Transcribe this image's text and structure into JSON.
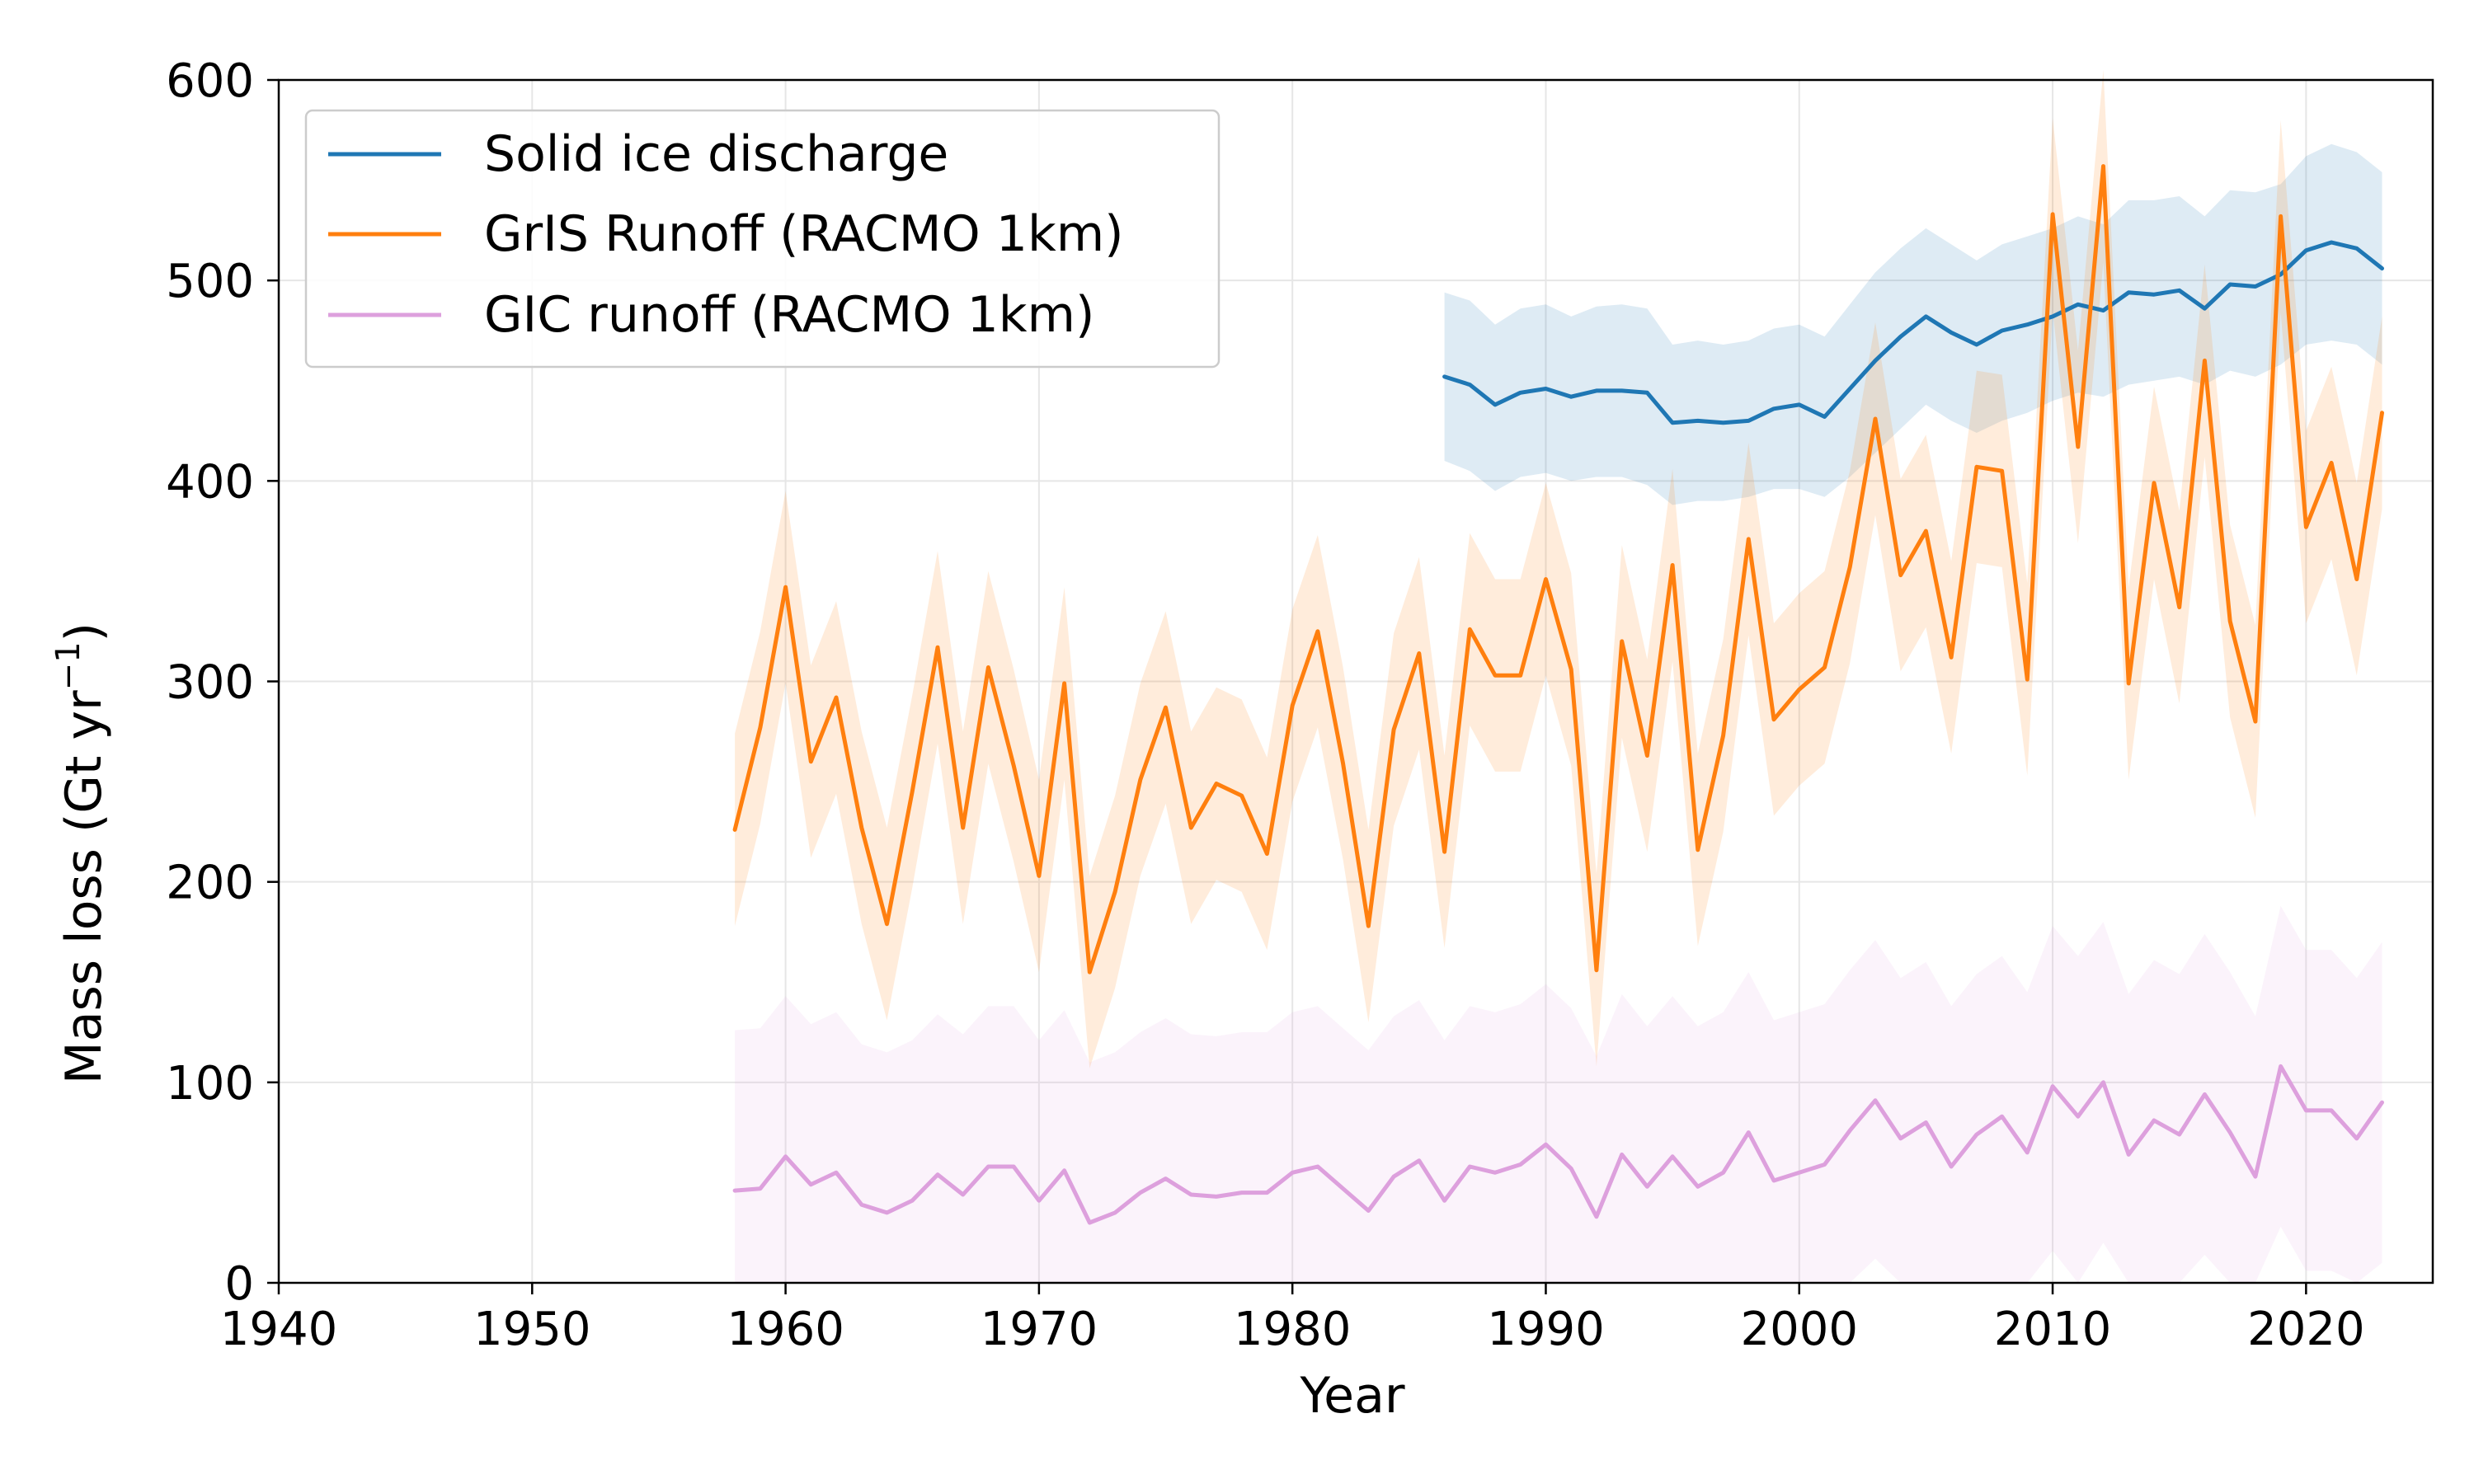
{
  "chart_data": {
    "type": "line",
    "xlabel": "Year",
    "ylabel": "Mass loss (Gt yr",
    "ylabel_sup": "−1",
    "ylabel_close": ")",
    "xlim": [
      1940,
      2025
    ],
    "ylim": [
      0,
      600
    ],
    "xticks": [
      "1940",
      "1950",
      "1960",
      "1970",
      "1980",
      "1990",
      "2000",
      "2010",
      "2020"
    ],
    "yticks": [
      "0",
      "100",
      "200",
      "300",
      "400",
      "500",
      "600"
    ],
    "grid": true,
    "legend_position": "top-left",
    "series": [
      {
        "name": "Solid ice discharge",
        "color": "#1f77b4",
        "band_color": "#1f77b4",
        "x": [
          1986,
          1987,
          1988,
          1989,
          1990,
          1991,
          1992,
          1993,
          1994,
          1995,
          1996,
          1997,
          1998,
          1999,
          2000,
          2001,
          2002,
          2003,
          2004,
          2005,
          2006,
          2007,
          2008,
          2009,
          2010,
          2011,
          2012,
          2013,
          2014,
          2015,
          2016,
          2017,
          2018,
          2019,
          2020,
          2021,
          2022,
          2023
        ],
        "y": [
          452,
          448,
          438,
          444,
          446,
          442,
          445,
          445,
          444,
          429,
          430,
          429,
          430,
          436,
          438,
          432,
          446,
          460,
          472,
          482,
          474,
          468,
          475,
          478,
          482,
          488,
          485,
          494,
          493,
          495,
          486,
          498,
          497,
          503,
          515,
          519,
          516,
          506
        ],
        "lower": [
          410,
          405,
          395,
          402,
          404,
          400,
          402,
          402,
          398,
          388,
          390,
          390,
          392,
          396,
          396,
          392,
          402,
          414,
          426,
          438,
          430,
          424,
          430,
          434,
          440,
          444,
          442,
          448,
          450,
          452,
          448,
          455,
          452,
          458,
          468,
          470,
          468,
          458
        ],
        "upper": [
          494,
          490,
          478,
          486,
          488,
          482,
          487,
          488,
          486,
          468,
          470,
          468,
          470,
          476,
          478,
          472,
          488,
          504,
          516,
          526,
          518,
          510,
          518,
          522,
          526,
          532,
          528,
          540,
          540,
          542,
          532,
          545,
          544,
          548,
          562,
          568,
          564,
          554
        ]
      },
      {
        "name": "GrIS Runoff (RACMO 1km)",
        "color": "#ff7f0e",
        "band_color": "#ff7f0e",
        "x": [
          1958,
          1959,
          1960,
          1961,
          1962,
          1963,
          1964,
          1965,
          1966,
          1967,
          1968,
          1969,
          1970,
          1971,
          1972,
          1973,
          1974,
          1975,
          1976,
          1977,
          1978,
          1979,
          1980,
          1981,
          1982,
          1983,
          1984,
          1985,
          1986,
          1987,
          1988,
          1989,
          1990,
          1991,
          1992,
          1993,
          1994,
          1995,
          1996,
          1997,
          1998,
          1999,
          2000,
          2001,
          2002,
          2003,
          2004,
          2005,
          2006,
          2007,
          2008,
          2009,
          2010,
          2011,
          2012,
          2013,
          2014,
          2015,
          2016,
          2017,
          2018,
          2019,
          2020,
          2021,
          2022,
          2023
        ],
        "y": [
          226,
          277,
          347,
          260,
          292,
          227,
          179,
          245,
          317,
          227,
          307,
          258,
          203,
          299,
          155,
          195,
          251,
          287,
          227,
          249,
          243,
          214,
          288,
          325,
          259,
          178,
          276,
          314,
          215,
          326,
          303,
          303,
          351,
          306,
          156,
          320,
          263,
          358,
          216,
          273,
          371,
          281,
          296,
          307,
          357,
          431,
          353,
          375,
          312,
          407,
          405,
          301,
          533,
          417,
          557,
          299,
          399,
          337,
          460,
          330,
          280,
          532,
          377,
          409,
          351,
          434
        ],
        "lower": [
          178,
          229,
          299,
          212,
          244,
          179,
          131,
          197,
          269,
          179,
          259,
          210,
          155,
          251,
          107,
          147,
          203,
          239,
          179,
          201,
          195,
          166,
          240,
          277,
          211,
          130,
          228,
          266,
          167,
          278,
          255,
          255,
          303,
          258,
          108,
          272,
          215,
          310,
          168,
          225,
          323,
          233,
          248,
          259,
          309,
          383,
          305,
          327,
          264,
          359,
          357,
          253,
          485,
          369,
          509,
          251,
          351,
          289,
          412,
          282,
          232,
          484,
          329,
          361,
          303,
          386
        ],
        "upper": [
          274,
          325,
          395,
          308,
          340,
          275,
          227,
          293,
          365,
          275,
          355,
          306,
          251,
          347,
          203,
          243,
          299,
          335,
          275,
          297,
          291,
          262,
          336,
          373,
          307,
          226,
          324,
          362,
          263,
          374,
          351,
          351,
          399,
          354,
          204,
          368,
          311,
          406,
          264,
          321,
          419,
          329,
          344,
          355,
          405,
          479,
          401,
          423,
          360,
          455,
          453,
          349,
          581,
          465,
          605,
          347,
          447,
          385,
          508,
          378,
          328,
          580,
          425,
          457,
          399,
          482
        ]
      },
      {
        "name": "GIC runoff (RACMO 1km)",
        "color": "#dda0dd",
        "band_color": "#dda0dd",
        "x": [
          1958,
          1959,
          1960,
          1961,
          1962,
          1963,
          1964,
          1965,
          1966,
          1967,
          1968,
          1969,
          1970,
          1971,
          1972,
          1973,
          1974,
          1975,
          1976,
          1977,
          1978,
          1979,
          1980,
          1981,
          1982,
          1983,
          1984,
          1985,
          1986,
          1987,
          1988,
          1989,
          1990,
          1991,
          1992,
          1993,
          1994,
          1995,
          1996,
          1997,
          1998,
          1999,
          2000,
          2001,
          2002,
          2003,
          2004,
          2005,
          2006,
          2007,
          2008,
          2009,
          2010,
          2011,
          2012,
          2013,
          2014,
          2015,
          2016,
          2017,
          2018,
          2019,
          2020,
          2021,
          2022,
          2023
        ],
        "y": [
          46,
          47,
          63,
          49,
          55,
          39,
          35,
          41,
          54,
          44,
          58,
          58,
          41,
          56,
          30,
          35,
          45,
          52,
          44,
          43,
          45,
          45,
          55,
          58,
          47,
          36,
          53,
          61,
          41,
          58,
          55,
          59,
          69,
          57,
          33,
          64,
          48,
          63,
          48,
          55,
          75,
          51,
          55,
          59,
          76,
          91,
          72,
          80,
          58,
          74,
          83,
          65,
          98,
          83,
          100,
          64,
          81,
          74,
          94,
          75,
          53,
          108,
          86,
          86,
          72,
          90
        ],
        "lower": [
          0,
          0,
          0,
          0,
          0,
          0,
          0,
          0,
          0,
          0,
          0,
          0,
          0,
          0,
          0,
          0,
          0,
          0,
          0,
          0,
          0,
          0,
          0,
          0,
          0,
          0,
          0,
          0,
          0,
          0,
          0,
          0,
          0,
          0,
          0,
          0,
          0,
          0,
          0,
          0,
          0,
          0,
          0,
          0,
          0,
          12,
          0,
          0,
          0,
          0,
          0,
          0,
          16,
          0,
          20,
          0,
          0,
          0,
          14,
          0,
          0,
          28,
          6,
          6,
          0,
          10
        ],
        "upper": [
          126,
          127,
          143,
          129,
          135,
          119,
          115,
          121,
          134,
          124,
          138,
          138,
          121,
          136,
          110,
          115,
          125,
          132,
          124,
          123,
          125,
          125,
          135,
          138,
          127,
          116,
          133,
          141,
          121,
          138,
          135,
          139,
          149,
          137,
          113,
          144,
          128,
          143,
          128,
          135,
          155,
          131,
          135,
          139,
          156,
          171,
          152,
          160,
          138,
          154,
          163,
          145,
          178,
          163,
          180,
          144,
          161,
          154,
          174,
          155,
          133,
          188,
          166,
          166,
          152,
          170
        ]
      }
    ]
  }
}
